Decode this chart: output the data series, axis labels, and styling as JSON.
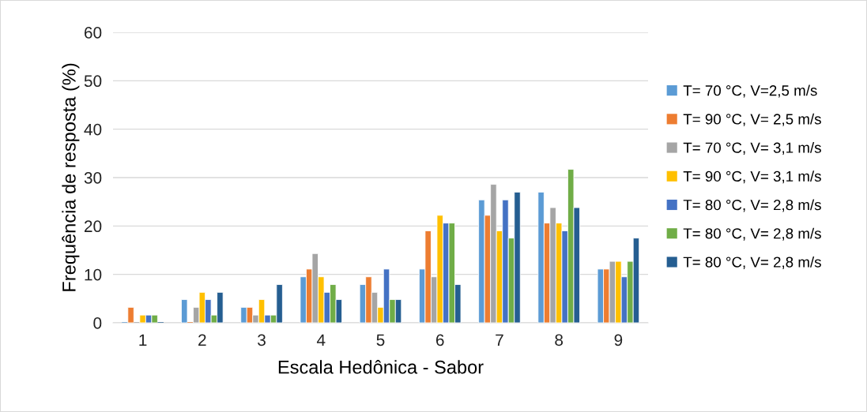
{
  "chart_data": {
    "type": "bar",
    "xlabel": "Escala Hedônica - Sabor",
    "ylabel": "Frequência de resposta (%)",
    "categories": [
      "1",
      "2",
      "3",
      "4",
      "5",
      "6",
      "7",
      "8",
      "9"
    ],
    "series": [
      {
        "name": "T= 70 °C, V=2,5 m/s",
        "color": "#5b9bd5",
        "values": [
          0,
          4.8,
          3.2,
          9.5,
          7.9,
          11.1,
          25.4,
          27.0,
          11.1
        ]
      },
      {
        "name": "T= 90 °C, V= 2,5 m/s",
        "color": "#ed7d31",
        "values": [
          3.2,
          0,
          3.2,
          11.1,
          9.5,
          19.0,
          22.2,
          20.6,
          11.1
        ]
      },
      {
        "name": "T= 70 °C, V= 3,1 m/s",
        "color": "#a5a5a5",
        "values": [
          0,
          3.2,
          1.6,
          14.3,
          6.3,
          9.5,
          28.6,
          23.8,
          12.7
        ]
      },
      {
        "name": "T= 90 °C, V= 3,1 m/s",
        "color": "#ffc000",
        "values": [
          1.6,
          6.3,
          4.8,
          9.5,
          3.2,
          22.2,
          19.0,
          20.6,
          12.7
        ]
      },
      {
        "name": "T= 80 °C, V= 2,8 m/s",
        "color": "#4472c4",
        "values": [
          1.6,
          4.8,
          1.6,
          6.3,
          11.1,
          20.6,
          25.4,
          19.0,
          9.5
        ]
      },
      {
        "name": "T= 80 °C, V= 2,8 m/s",
        "color": "#70ad47",
        "values": [
          1.6,
          1.6,
          1.6,
          7.9,
          4.8,
          20.6,
          17.5,
          31.7,
          12.7
        ]
      },
      {
        "name": "T= 80 °C, V= 2,8 m/s",
        "color": "#255e91",
        "values": [
          0,
          6.3,
          7.9,
          4.8,
          4.8,
          7.9,
          27.0,
          23.8,
          17.5
        ]
      }
    ],
    "ylim": [
      0,
      60
    ],
    "yticks": [
      0,
      10,
      20,
      30,
      40,
      50,
      60
    ],
    "grid": "y",
    "legend": "right"
  }
}
